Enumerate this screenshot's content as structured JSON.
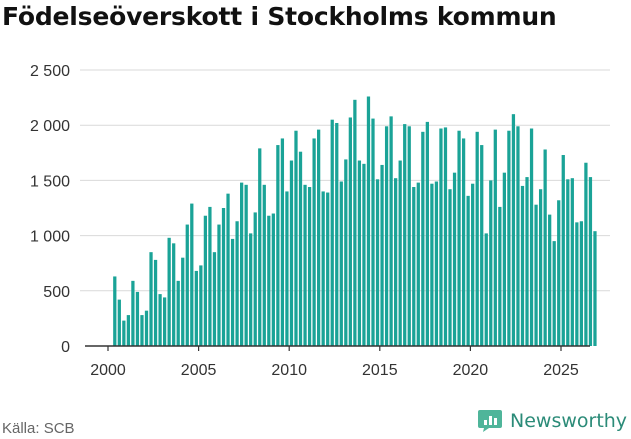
{
  "title": "Födelseöverskott i Stockholms kommun",
  "source": "Källa: SCB",
  "brand": "Newsworthy",
  "colors": {
    "bar": "#1aa397",
    "grid": "#d9d9d9",
    "brand": "#2b8b78"
  },
  "chart_data": {
    "type": "bar",
    "title": "Födelseöverskott i Stockholms kommun",
    "xlabel": "",
    "ylabel": "",
    "ylim": [
      0,
      2500
    ],
    "y_ticks": [
      0,
      500,
      1000,
      1500,
      2000,
      2500
    ],
    "y_tick_labels": [
      "0",
      "500",
      "1 000",
      "1 500",
      "2 000",
      "2 500"
    ],
    "x_range": [
      2000,
      2025.95
    ],
    "x_ticks": [
      2000,
      2005,
      2010,
      2015,
      2020,
      2025
    ],
    "x_tick_labels": [
      "2000",
      "2005",
      "2010",
      "2015",
      "2020",
      "2025"
    ],
    "frequency": "quarterly",
    "start_period": "2000 Q2",
    "values": [
      630,
      420,
      230,
      280,
      590,
      490,
      280,
      320,
      850,
      780,
      470,
      440,
      980,
      930,
      590,
      800,
      1100,
      1290,
      680,
      730,
      1180,
      1260,
      850,
      1100,
      1250,
      1380,
      970,
      1130,
      1480,
      1460,
      1020,
      1210,
      1790,
      1460,
      1180,
      1200,
      1820,
      1880,
      1400,
      1680,
      1950,
      1760,
      1460,
      1440,
      1880,
      1960,
      1400,
      1390,
      2050,
      2020,
      1490,
      1690,
      2070,
      2230,
      1680,
      1650,
      2260,
      2060,
      1510,
      1640,
      1990,
      2080,
      1520,
      1680,
      2010,
      1990,
      1440,
      1480,
      1940,
      2030,
      1470,
      1490,
      1970,
      1980,
      1420,
      1570,
      1950,
      1880,
      1360,
      1470,
      1940,
      1820,
      1020,
      1500,
      1960,
      1260,
      1570,
      1950,
      2100,
      1990,
      1450,
      1530,
      1970,
      1280,
      1420,
      1780,
      1190,
      950,
      1320,
      1730,
      1510,
      1520,
      1120,
      1130,
      1660,
      1530,
      1040
    ]
  }
}
